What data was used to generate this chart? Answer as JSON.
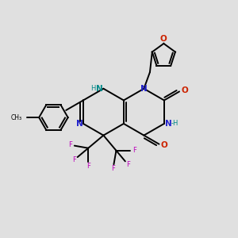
{
  "background_color": "#e0e0e0",
  "bond_color": "#000000",
  "nitrogen_color": "#2222cc",
  "oxygen_color": "#cc2200",
  "fluorine_color": "#bb00bb",
  "nh_color": "#008888",
  "figsize": [
    3.0,
    3.0
  ],
  "dpi": 100,
  "xlim": [
    0,
    10
  ],
  "ylim": [
    0,
    10
  ]
}
